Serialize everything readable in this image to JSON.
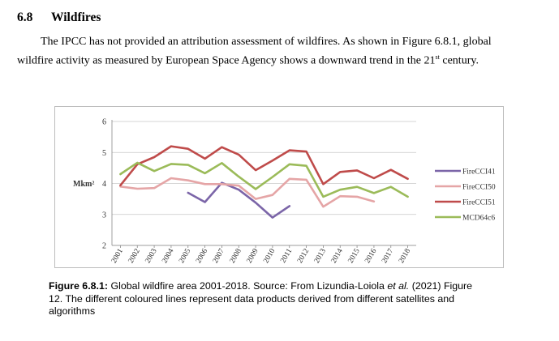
{
  "section": {
    "number": "6.8",
    "title": "Wildfires"
  },
  "paragraph": {
    "line1": "The IPCC has not provided an attribution assessment of wildfires. As shown in Figure 6.8.1, global",
    "line2_before": "wildfire activity as measured by European Space Agency shows a downward trend in the 21",
    "line2_sup": "st",
    "line2_after": " century."
  },
  "caption": {
    "label": "Figure 6.8.1:",
    "line1_text": " Global wildfire area 2001-2018. Source: From Lizundia-Loiola ",
    "line1_em": "et al.",
    "line1_end": " (2021) Figure",
    "line2": "12. The different coloured lines represent data products derived from different satellites and",
    "line3": "algorithms"
  },
  "chart_data": {
    "type": "line",
    "title": "",
    "xlabel": "",
    "ylabel": "Mkm²",
    "x": [
      2001,
      2002,
      2003,
      2004,
      2005,
      2006,
      2007,
      2008,
      2009,
      2010,
      2011,
      2012,
      2013,
      2014,
      2015,
      2016,
      2017,
      2018
    ],
    "x_tick_labels": [
      "2001",
      "2002",
      "2003",
      "2004",
      "2005",
      "2006",
      "2007",
      "2008",
      "2009",
      "2010",
      "2011",
      "2012",
      "2013",
      "2014",
      "2015",
      "2016",
      "2017",
      "2018"
    ],
    "y_ticks": [
      2,
      3,
      4,
      5,
      6
    ],
    "ylim": [
      2,
      6
    ],
    "grid": "horizontal",
    "legend_position": "right",
    "series": [
      {
        "name": "FireCCI41",
        "color": "#7b65a8",
        "values": [
          null,
          null,
          null,
          null,
          3.7,
          3.4,
          4.02,
          3.8,
          3.38,
          2.9,
          3.27,
          null,
          null,
          null,
          null,
          null,
          null,
          null
        ]
      },
      {
        "name": "FireCCI50",
        "color": "#e5a5a6",
        "values": [
          3.9,
          3.83,
          3.85,
          4.17,
          4.1,
          3.98,
          3.98,
          3.93,
          3.5,
          3.63,
          4.15,
          4.12,
          3.25,
          3.59,
          3.57,
          3.42,
          null,
          null
        ]
      },
      {
        "name": "FireCCI51",
        "color": "#bf4b4a",
        "values": [
          3.94,
          4.62,
          4.85,
          5.2,
          5.12,
          4.8,
          5.17,
          4.93,
          4.43,
          4.74,
          5.07,
          5.03,
          3.98,
          4.37,
          4.42,
          4.17,
          4.44,
          4.15
        ]
      },
      {
        "name": "MCD64c6",
        "color": "#9bbb59",
        "values": [
          4.3,
          4.67,
          4.4,
          4.63,
          4.6,
          4.33,
          4.66,
          4.22,
          3.82,
          4.21,
          4.62,
          4.57,
          3.57,
          3.8,
          3.89,
          3.69,
          3.89,
          3.57
        ]
      }
    ]
  }
}
